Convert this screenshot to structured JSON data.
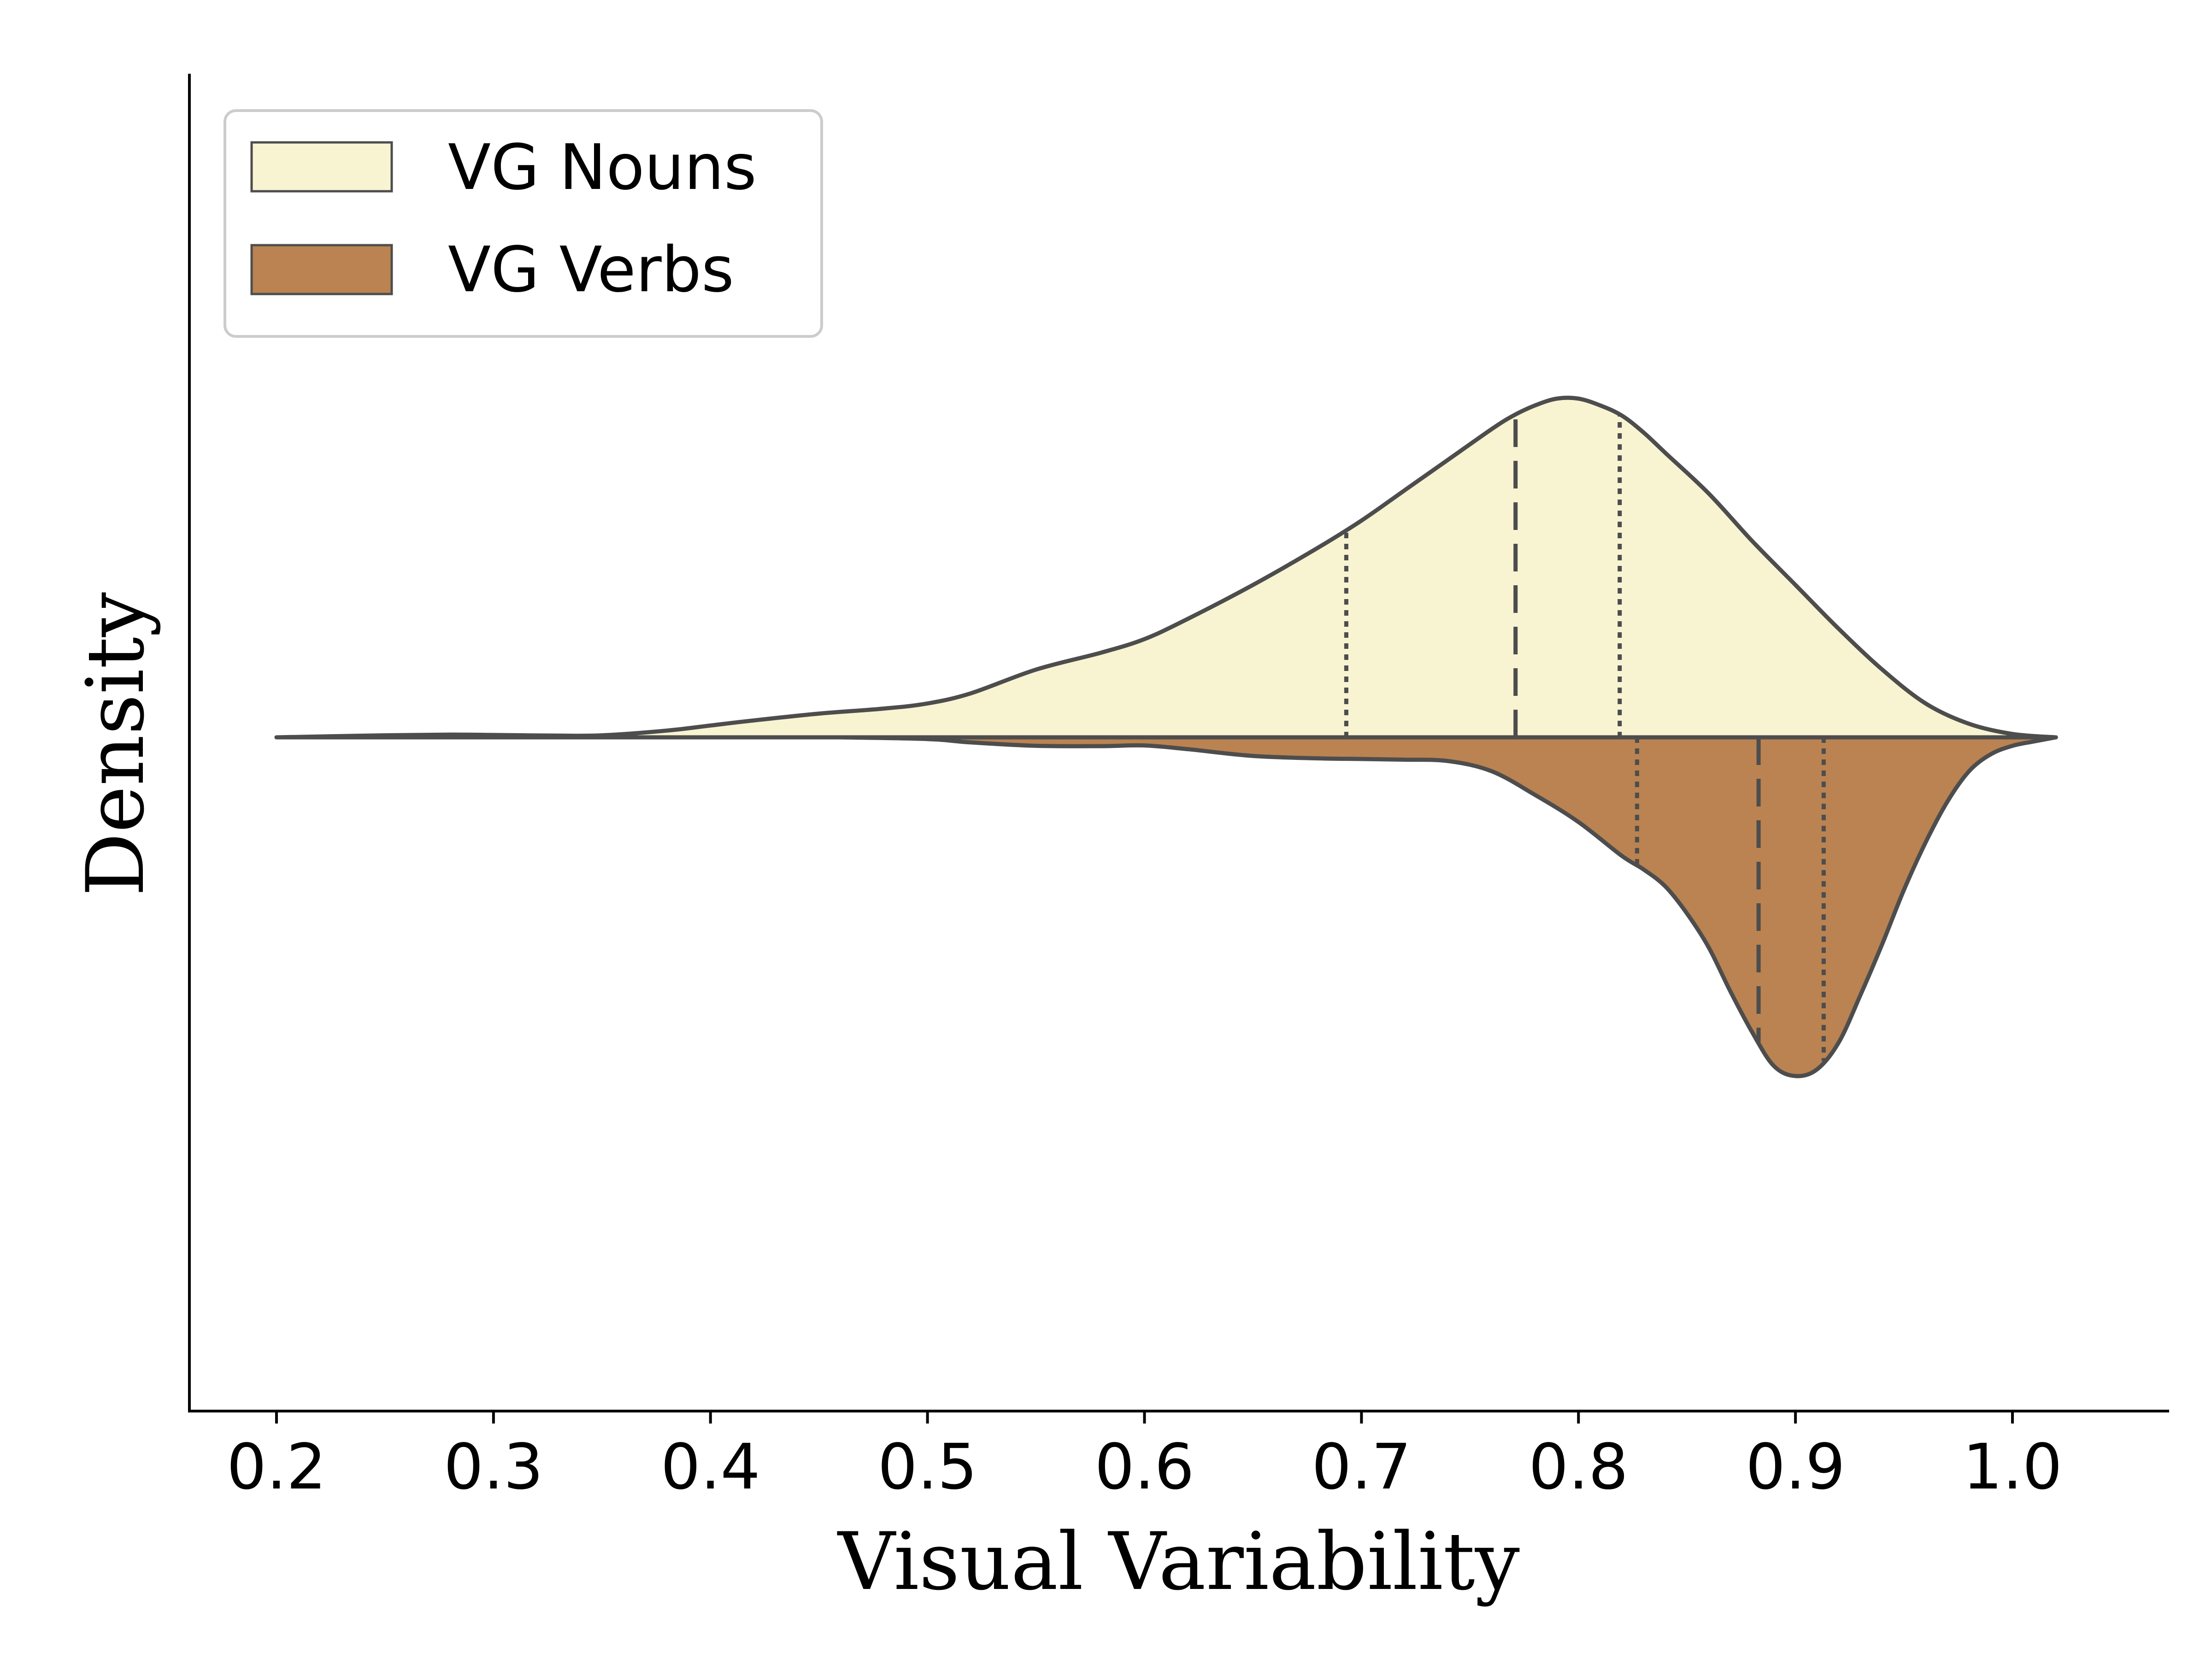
{
  "chart_data": {
    "type": "violin",
    "orientation": "horizontal",
    "split": true,
    "xlabel": "Visual Variability",
    "ylabel": "Density",
    "xlim": [
      0.16,
      1.06
    ],
    "xticks": [
      0.2,
      0.3,
      0.4,
      0.5,
      0.6,
      0.7,
      0.8,
      0.9,
      1.0
    ],
    "xtick_labels": [
      "0.2",
      "0.3",
      "0.4",
      "0.5",
      "0.6",
      "0.7",
      "0.8",
      "0.9",
      "1.0"
    ],
    "y_ticks_shown": false,
    "grid": false,
    "legend": {
      "position": "top-left",
      "entries": [
        {
          "label": "VG Nouns",
          "color": "#f8f4d2"
        },
        {
          "label": "VG Verbs",
          "color": "#ba8351"
        }
      ]
    },
    "edge_color": "#4d4d4d",
    "series": [
      {
        "name": "VG Nouns",
        "side": "upper",
        "color": "#f8f4d2",
        "density": {
          "x": [
            0.2,
            0.25,
            0.28,
            0.3,
            0.33,
            0.35,
            0.38,
            0.4,
            0.42,
            0.45,
            0.48,
            0.5,
            0.52,
            0.55,
            0.58,
            0.6,
            0.62,
            0.65,
            0.68,
            0.7,
            0.72,
            0.74,
            0.76,
            0.77,
            0.78,
            0.79,
            0.8,
            0.81,
            0.82,
            0.83,
            0.84,
            0.86,
            0.88,
            0.9,
            0.92,
            0.94,
            0.96,
            0.98,
            1.0,
            1.02
          ],
          "y": [
            0.0,
            0.006,
            0.008,
            0.007,
            0.005,
            0.006,
            0.02,
            0.035,
            0.05,
            0.07,
            0.085,
            0.1,
            0.13,
            0.2,
            0.25,
            0.29,
            0.35,
            0.45,
            0.56,
            0.64,
            0.73,
            0.82,
            0.91,
            0.95,
            0.98,
            1.0,
            1.0,
            0.98,
            0.95,
            0.9,
            0.84,
            0.72,
            0.58,
            0.45,
            0.32,
            0.2,
            0.1,
            0.04,
            0.01,
            0.0
          ]
        },
        "quartiles": {
          "q1": 0.693,
          "median": 0.771,
          "q3": 0.819
        }
      },
      {
        "name": "VG Verbs",
        "side": "lower",
        "color": "#ba8351",
        "density": {
          "x": [
            0.46,
            0.5,
            0.52,
            0.55,
            0.58,
            0.6,
            0.62,
            0.65,
            0.68,
            0.7,
            0.72,
            0.74,
            0.76,
            0.78,
            0.8,
            0.82,
            0.83,
            0.84,
            0.85,
            0.86,
            0.87,
            0.88,
            0.89,
            0.9,
            0.91,
            0.92,
            0.93,
            0.94,
            0.95,
            0.96,
            0.97,
            0.98,
            0.99,
            1.0,
            1.01,
            1.02
          ],
          "y": [
            0.0,
            0.005,
            0.015,
            0.025,
            0.026,
            0.024,
            0.035,
            0.055,
            0.062,
            0.064,
            0.066,
            0.07,
            0.1,
            0.17,
            0.25,
            0.35,
            0.39,
            0.44,
            0.52,
            0.62,
            0.75,
            0.87,
            0.97,
            1.0,
            0.98,
            0.9,
            0.76,
            0.61,
            0.45,
            0.31,
            0.19,
            0.1,
            0.05,
            0.025,
            0.012,
            0.0
          ]
        },
        "quartiles": {
          "q1": 0.827,
          "median": 0.883,
          "q3": 0.913
        }
      }
    ]
  }
}
